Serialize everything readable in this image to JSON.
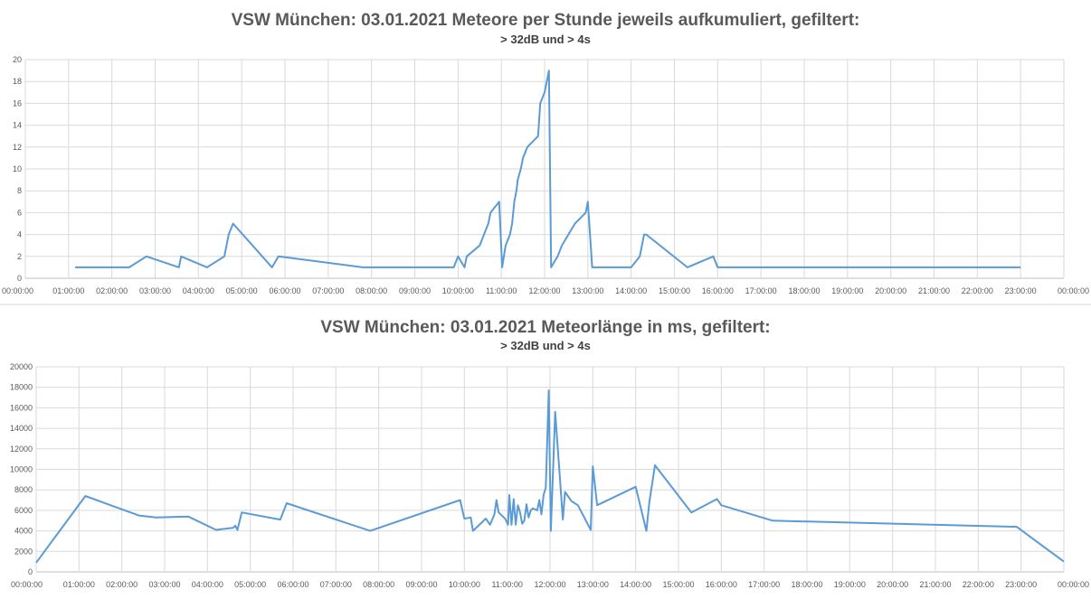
{
  "chart_data": [
    {
      "type": "line",
      "title": "VSW München: 03.01.2021 Meteore per Stunde jeweils aufkumuliert, gefiltert:",
      "subtitle": "> 32dB und > 4s",
      "xlabel": "",
      "ylabel": "",
      "xlim": [
        0,
        24
      ],
      "ylim": [
        0,
        20
      ],
      "y_ticks": [
        "0",
        "2",
        "4",
        "6",
        "8",
        "10",
        "12",
        "14",
        "16",
        "18",
        "20"
      ],
      "x_ticks": [
        "00:00:00",
        "01:00:00",
        "02:00:00",
        "03:00:00",
        "04:00:00",
        "05:00:00",
        "06:00:00",
        "07:00:00",
        "08:00:00",
        "09:00:00",
        "10:00:00",
        "11:00:00",
        "12:00:00",
        "13:00:00",
        "14:00:00",
        "15:00:00",
        "16:00:00",
        "17:00:00",
        "18:00:00",
        "19:00:00",
        "20:00:00",
        "21:00:00",
        "22:00:00",
        "23:00:00",
        "00:00:00"
      ],
      "grid": true,
      "legend": "none",
      "series": [
        {
          "color": "#5b9bd5",
          "points": [
            [
              1.15,
              1
            ],
            [
              2.4,
              1
            ],
            [
              2.8,
              2
            ],
            [
              3.55,
              1
            ],
            [
              3.6,
              2
            ],
            [
              4.2,
              1
            ],
            [
              4.6,
              2
            ],
            [
              4.65,
              3
            ],
            [
              4.7,
              4
            ],
            [
              4.8,
              5
            ],
            [
              5.7,
              1
            ],
            [
              5.85,
              2
            ],
            [
              7.8,
              1
            ],
            [
              9.9,
              1
            ],
            [
              10.0,
              2
            ],
            [
              10.15,
              1
            ],
            [
              10.2,
              2
            ],
            [
              10.5,
              3
            ],
            [
              10.6,
              4
            ],
            [
              10.7,
              5
            ],
            [
              10.75,
              6
            ],
            [
              10.95,
              7
            ],
            [
              11.02,
              1
            ],
            [
              11.1,
              3
            ],
            [
              11.2,
              4
            ],
            [
              11.25,
              5
            ],
            [
              11.3,
              7
            ],
            [
              11.35,
              8
            ],
            [
              11.38,
              9
            ],
            [
              11.45,
              10
            ],
            [
              11.5,
              11
            ],
            [
              11.6,
              12
            ],
            [
              11.85,
              13
            ],
            [
              11.9,
              16
            ],
            [
              12.0,
              17
            ],
            [
              12.05,
              18
            ],
            [
              12.1,
              19
            ],
            [
              12.15,
              1
            ],
            [
              12.3,
              2
            ],
            [
              12.4,
              3
            ],
            [
              12.7,
              5
            ],
            [
              12.95,
              6
            ],
            [
              13.0,
              7
            ],
            [
              13.1,
              1
            ],
            [
              14.0,
              1
            ],
            [
              14.2,
              2
            ],
            [
              14.25,
              3
            ],
            [
              14.3,
              4
            ],
            [
              14.35,
              4
            ],
            [
              15.3,
              1
            ],
            [
              15.9,
              2
            ],
            [
              16.0,
              1
            ],
            [
              23.0,
              1
            ]
          ]
        }
      ]
    },
    {
      "type": "line",
      "title": "VSW München: 03.01.2021 Meteorlänge in ms, gefiltert:",
      "subtitle": "> 32dB und > 4s",
      "xlabel": "",
      "ylabel": "",
      "xlim": [
        0,
        24
      ],
      "ylim": [
        0,
        20000
      ],
      "y_ticks": [
        "0",
        "2000",
        "4000",
        "6000",
        "8000",
        "10000",
        "12000",
        "14000",
        "16000",
        "18000",
        "20000"
      ],
      "x_ticks": [
        "00:00:00",
        "01:00:00",
        "02:00:00",
        "03:00:00",
        "04:00:00",
        "05:00:00",
        "06:00:00",
        "07:00:00",
        "08:00:00",
        "09:00:00",
        "10:00:00",
        "11:00:00",
        "12:00:00",
        "13:00:00",
        "14:00:00",
        "15:00:00",
        "16:00:00",
        "17:00:00",
        "18:00:00",
        "19:00:00",
        "20:00:00",
        "21:00:00",
        "22:00:00",
        "23:00:00",
        "00:00:00"
      ],
      "grid": true,
      "legend": "none",
      "series": [
        {
          "color": "#5b9bd5",
          "points": [
            [
              0.0,
              900
            ],
            [
              1.15,
              7400
            ],
            [
              2.4,
              5500
            ],
            [
              2.8,
              5300
            ],
            [
              3.55,
              5400
            ],
            [
              4.2,
              4100
            ],
            [
              4.6,
              4300
            ],
            [
              4.65,
              4500
            ],
            [
              4.7,
              4100
            ],
            [
              4.8,
              5800
            ],
            [
              5.7,
              5100
            ],
            [
              5.85,
              6700
            ],
            [
              7.8,
              4000
            ],
            [
              9.9,
              7000
            ],
            [
              10.0,
              5200
            ],
            [
              10.15,
              5300
            ],
            [
              10.2,
              4000
            ],
            [
              10.5,
              5200
            ],
            [
              10.6,
              4600
            ],
            [
              10.7,
              5600
            ],
            [
              10.75,
              7000
            ],
            [
              10.8,
              5800
            ],
            [
              10.95,
              5200
            ],
            [
              11.02,
              4600
            ],
            [
              11.05,
              7500
            ],
            [
              11.1,
              4600
            ],
            [
              11.15,
              7100
            ],
            [
              11.2,
              4600
            ],
            [
              11.25,
              6500
            ],
            [
              11.3,
              5800
            ],
            [
              11.35,
              4700
            ],
            [
              11.4,
              5000
            ],
            [
              11.45,
              6600
            ],
            [
              11.5,
              5300
            ],
            [
              11.55,
              6000
            ],
            [
              11.6,
              6200
            ],
            [
              11.7,
              6000
            ],
            [
              11.75,
              7000
            ],
            [
              11.8,
              5600
            ],
            [
              11.85,
              7500
            ],
            [
              11.9,
              8200
            ],
            [
              11.97,
              17700
            ],
            [
              12.02,
              4000
            ],
            [
              12.12,
              15600
            ],
            [
              12.3,
              5100
            ],
            [
              12.35,
              7800
            ],
            [
              12.5,
              6900
            ],
            [
              12.65,
              6500
            ],
            [
              12.95,
              4100
            ],
            [
              13.0,
              10300
            ],
            [
              13.1,
              6500
            ],
            [
              14.0,
              8300
            ],
            [
              14.25,
              4000
            ],
            [
              14.32,
              6800
            ],
            [
              14.45,
              10400
            ],
            [
              15.3,
              5800
            ],
            [
              15.9,
              7100
            ],
            [
              16.0,
              6500
            ],
            [
              17.2,
              5000
            ],
            [
              22.9,
              4400
            ],
            [
              24.0,
              1000
            ]
          ]
        }
      ]
    }
  ]
}
